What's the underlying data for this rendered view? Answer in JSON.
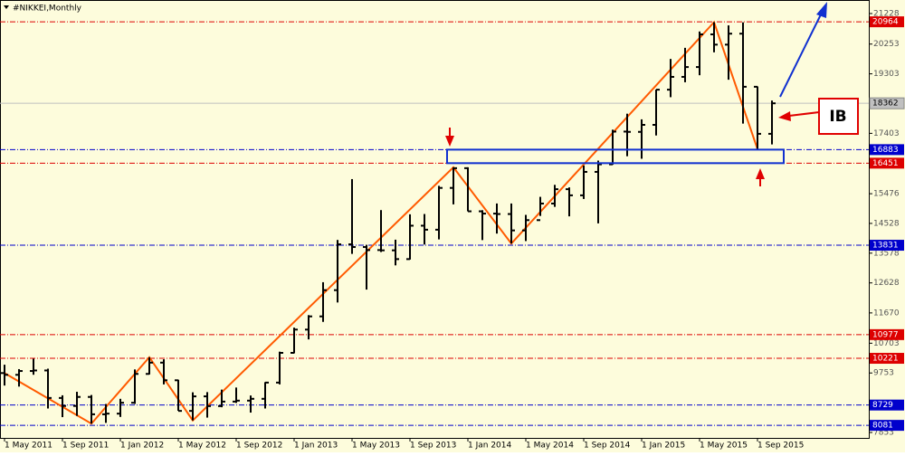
{
  "chart_data": {
    "type": "ohlc",
    "title": "#NIKKEI,Monthly",
    "categories": [
      "1 May 2011",
      null,
      null,
      null,
      "1 Sep 2011",
      null,
      null,
      null,
      "1 Jan 2012",
      null,
      null,
      null,
      "1 May 2012",
      null,
      null,
      null,
      "1 Sep 2012",
      null,
      null,
      null,
      "1 Jan 2013",
      null,
      null,
      null,
      "1 May 2013",
      null,
      null,
      null,
      "1 Sep 2013",
      null,
      null,
      null,
      "1 Jan 2014",
      null,
      null,
      null,
      "1 May 2014",
      null,
      null,
      null,
      "1 Sep 2014",
      null,
      null,
      null,
      "1 Jan 2015",
      null,
      null,
      null,
      "1 May 2015",
      null,
      null,
      null,
      "1 Sep 2015",
      null
    ],
    "open": [
      9750,
      9694,
      9816,
      9833,
      8955,
      8700,
      8988,
      8434,
      8455,
      8802,
      9723,
      10083,
      9520,
      8542,
      9006,
      8695,
      8839,
      8870,
      8928,
      9446,
      10395,
      11138,
      11559,
      12397,
      13860,
      13774,
      13677,
      13668,
      13388,
      14455,
      14327,
      15661,
      16291,
      14914,
      14841,
      14827,
      14304,
      14632,
      15162,
      15620,
      15424,
      16173,
      16413,
      17459,
      17450,
      17674,
      18797,
      19206,
      19520,
      20563,
      20235,
      20585,
      18890,
      17388
    ],
    "high": [
      10017,
      9876,
      10207,
      9890,
      9040,
      9152,
      9050,
      8762,
      8928,
      9866,
      10255,
      10190,
      9537,
      9136,
      9142,
      9222,
      9288,
      9034,
      9460,
      10433,
      11200,
      11600,
      12650,
      14000,
      15942,
      13844,
      14953,
      14008,
      14818,
      14828,
      15727,
      16320,
      16320,
      14950,
      15164,
      15164,
      14800,
      15376,
      15759,
      15678,
      16374,
      16533,
      17520,
      18030,
      17850,
      18800,
      19778,
      20133,
      20655,
      20952,
      20850,
      20946,
      18900,
      18450
    ],
    "low": [
      9351,
      9318,
      9696,
      8619,
      8343,
      8382,
      8135,
      8160,
      8349,
      8765,
      9705,
      9388,
      8545,
      8238,
      8328,
      8659,
      8796,
      8488,
      8619,
      9388,
      10380,
      10825,
      11384,
      12003,
      13555,
      12415,
      13614,
      13188,
      13373,
      13853,
      14017,
      15135,
      14914,
      13995,
      14203,
      13885,
      13964,
      14766,
      15056,
      14753,
      15308,
      14529,
      16400,
      16672,
      16592,
      17335,
      18557,
      19034,
      19258,
      19990,
      19115,
      17714,
      16901,
      17050
    ],
    "close": [
      9694,
      9816,
      9833,
      8955,
      8700,
      8988,
      8434,
      8455,
      8802,
      9723,
      10083,
      9520,
      8542,
      9006,
      8695,
      8839,
      8870,
      8928,
      9446,
      10395,
      11138,
      11559,
      12397,
      13860,
      13774,
      13677,
      13668,
      13388,
      14455,
      14327,
      15661,
      16291,
      14914,
      14841,
      14827,
      14304,
      14632,
      15162,
      15620,
      15424,
      16173,
      16413,
      17459,
      17450,
      17674,
      18797,
      19206,
      19520,
      20563,
      20235,
      20585,
      18890,
      17388,
      18362
    ],
    "color": "#000000",
    "zigzag": {
      "color": "#ff5a00",
      "connect_gaps": true,
      "values": [
        9750,
        null,
        null,
        null,
        null,
        null,
        8135,
        null,
        null,
        null,
        10255,
        null,
        null,
        8238,
        null,
        null,
        null,
        null,
        null,
        null,
        null,
        null,
        null,
        null,
        null,
        null,
        null,
        null,
        null,
        null,
        null,
        16320,
        null,
        null,
        null,
        13885,
        null,
        null,
        null,
        null,
        null,
        null,
        null,
        null,
        null,
        null,
        null,
        null,
        null,
        20952,
        null,
        null,
        16901,
        null
      ]
    },
    "ylim": [
      7680,
      21660
    ],
    "yticks": [
      21228,
      20253,
      19303,
      17403,
      15476,
      14528,
      13578,
      12628,
      11670,
      10703,
      9753,
      7853
    ],
    "levels": [
      {
        "value": 20964,
        "color": "#dd0000"
      },
      {
        "value": 16883,
        "color": "#0000cc"
      },
      {
        "value": 16451,
        "color": "#dd0000"
      },
      {
        "value": 13831,
        "color": "#0000cc"
      },
      {
        "value": 10977,
        "color": "#dd0000"
      },
      {
        "value": 10221,
        "color": "#dd0000"
      },
      {
        "value": 8729,
        "color": "#0000cc"
      },
      {
        "value": 8081,
        "color": "#0000cc"
      }
    ],
    "current_price": {
      "value": 18362,
      "color": "#c0c0c0"
    },
    "annotation": "IB"
  }
}
